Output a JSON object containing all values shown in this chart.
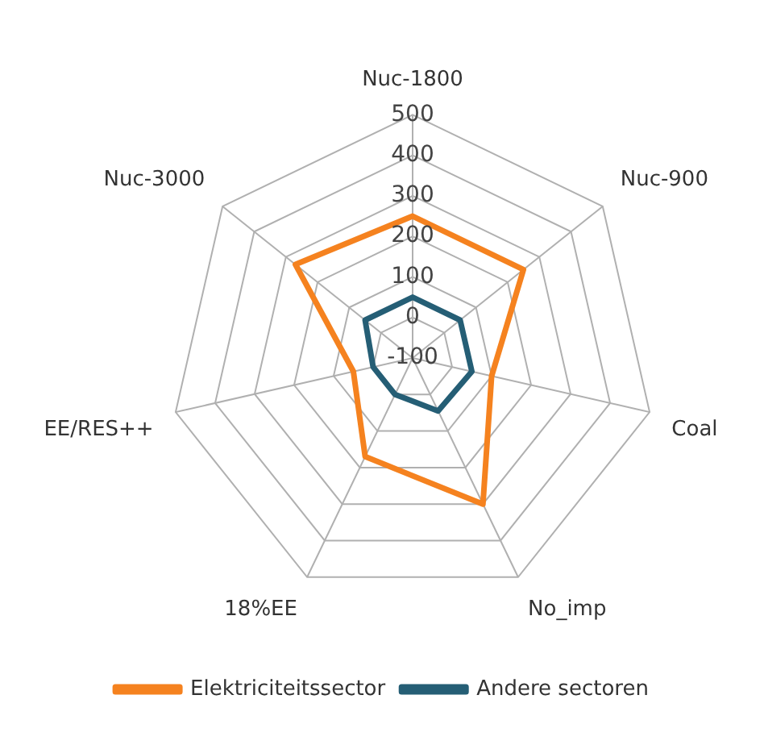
{
  "chart_data": {
    "type": "radar",
    "categories": [
      "Nuc-1800",
      "Nuc-900",
      "Coal",
      "No_imp",
      "18%EE",
      "EE/RES++",
      "Nuc-3000"
    ],
    "series": [
      {
        "name": "Elektriciteitssector",
        "color": "#f5821f",
        "values": [
          250,
          250,
          100,
          300,
          170,
          50,
          270
        ]
      },
      {
        "name": "Andere sectoren",
        "color": "#255e75",
        "values": [
          50,
          50,
          50,
          45,
          0,
          0,
          50
        ]
      }
    ],
    "ylim": [
      -100,
      500
    ],
    "yticks": [
      -100,
      0,
      100,
      200,
      300,
      400,
      500
    ],
    "legend": "bottom",
    "marker": "none",
    "grid": true
  }
}
